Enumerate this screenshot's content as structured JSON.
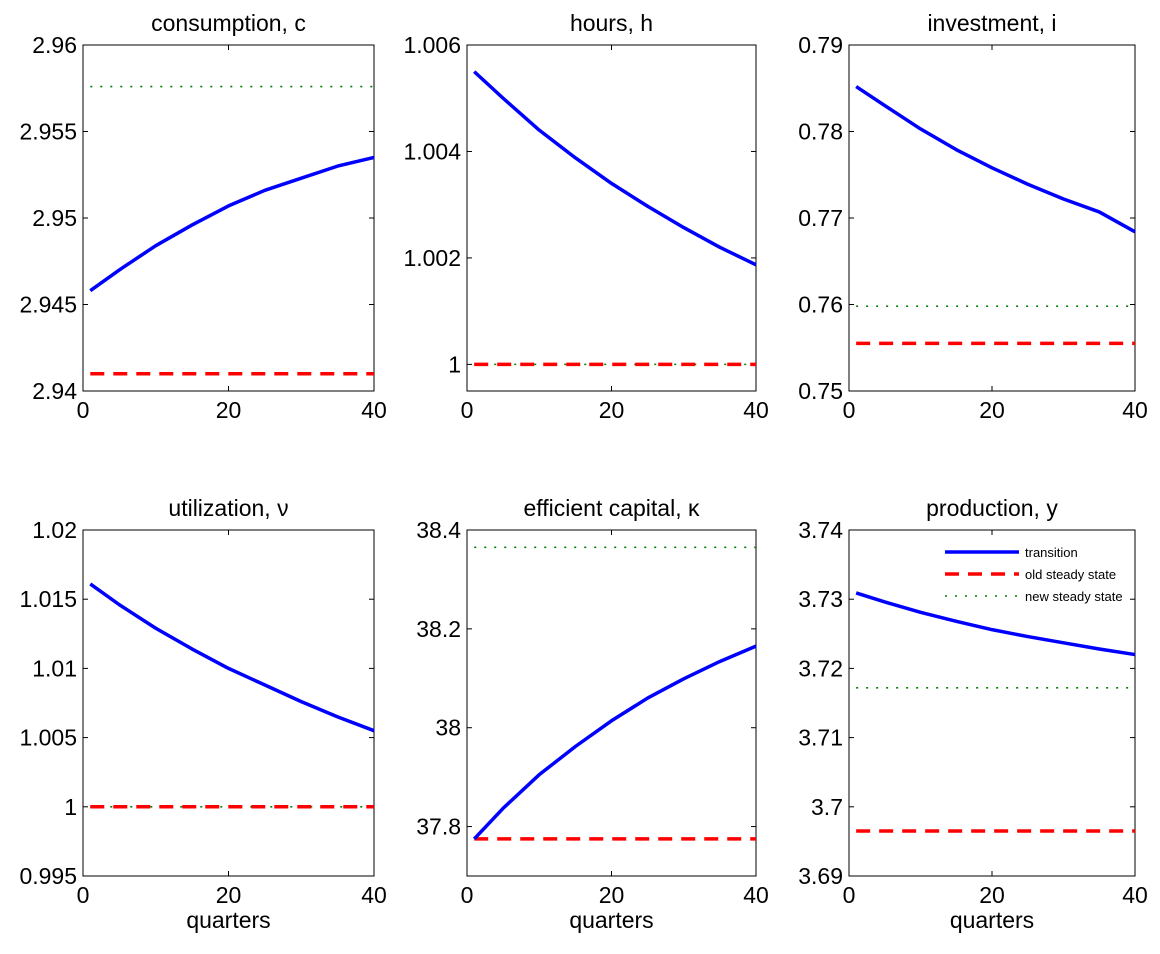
{
  "colors": {
    "transition": "#0000ff",
    "old_steady_state": "#ff0000",
    "new_steady_state": "#008000"
  },
  "legend": {
    "placement": "top-right",
    "entries": [
      "transition",
      "old steady state",
      "new steady state"
    ]
  },
  "chart_data": [
    {
      "type": "line",
      "title": "consumption, c",
      "xlabel": "",
      "xlim": [
        0,
        40
      ],
      "ylim": [
        2.94,
        2.96
      ],
      "xticks": [
        0,
        20,
        40
      ],
      "xtick_labels": [
        "0",
        "20",
        "40"
      ],
      "yticks": [
        2.94,
        2.945,
        2.95,
        2.955,
        2.96
      ],
      "ytick_labels": [
        "2.94",
        "2.945",
        "2.95",
        "2.955",
        "2.96"
      ],
      "x": [
        1,
        5,
        10,
        15,
        20,
        25,
        30,
        35,
        40
      ],
      "series": [
        {
          "name": "transition",
          "values": [
            2.9458,
            2.947,
            2.9484,
            2.9496,
            2.9507,
            2.9516,
            2.9523,
            2.953,
            2.9535
          ]
        },
        {
          "name": "old steady state",
          "values": [
            2.941,
            2.941,
            2.941,
            2.941,
            2.941,
            2.941,
            2.941,
            2.941,
            2.941
          ]
        },
        {
          "name": "new steady state",
          "values": [
            2.9576,
            2.9576,
            2.9576,
            2.9576,
            2.9576,
            2.9576,
            2.9576,
            2.9576,
            2.9576
          ]
        }
      ]
    },
    {
      "type": "line",
      "title": "hours, h",
      "xlabel": "",
      "xlim": [
        0,
        40
      ],
      "ylim": [
        0.9995,
        1.006
      ],
      "xticks": [
        0,
        20,
        40
      ],
      "xtick_labels": [
        "0",
        "20",
        "40"
      ],
      "yticks": [
        1.0,
        1.002,
        1.004,
        1.006
      ],
      "ytick_labels": [
        "1",
        "1.002",
        "1.004",
        "1.006"
      ],
      "x": [
        1,
        5,
        10,
        15,
        20,
        25,
        30,
        35,
        40
      ],
      "series": [
        {
          "name": "transition",
          "values": [
            1.0055,
            1.005,
            1.0044,
            1.00388,
            1.0034,
            1.00297,
            1.00257,
            1.0022,
            1.00187
          ]
        },
        {
          "name": "old steady state",
          "values": [
            1.0,
            1.0,
            1.0,
            1.0,
            1.0,
            1.0,
            1.0,
            1.0,
            1.0
          ]
        },
        {
          "name": "new steady state",
          "values": [
            1.0,
            1.0,
            1.0,
            1.0,
            1.0,
            1.0,
            1.0,
            1.0,
            1.0
          ]
        }
      ]
    },
    {
      "type": "line",
      "title": "investment, i",
      "xlabel": "",
      "xlim": [
        0,
        40
      ],
      "ylim": [
        0.75,
        0.79
      ],
      "xticks": [
        0,
        20,
        40
      ],
      "xtick_labels": [
        "0",
        "20",
        "40"
      ],
      "yticks": [
        0.75,
        0.76,
        0.77,
        0.78,
        0.79
      ],
      "ytick_labels": [
        "0.75",
        "0.76",
        "0.77",
        "0.78",
        "0.79"
      ],
      "x": [
        1,
        5,
        10,
        15,
        20,
        25,
        30,
        35,
        40
      ],
      "series": [
        {
          "name": "transition",
          "values": [
            0.7852,
            0.783,
            0.7803,
            0.7779,
            0.7758,
            0.7739,
            0.7722,
            0.7707,
            0.7684
          ]
        },
        {
          "name": "old steady state",
          "values": [
            0.7555,
            0.7555,
            0.7555,
            0.7555,
            0.7555,
            0.7555,
            0.7555,
            0.7555,
            0.7555
          ]
        },
        {
          "name": "new steady state",
          "values": [
            0.7598,
            0.7598,
            0.7598,
            0.7598,
            0.7598,
            0.7598,
            0.7598,
            0.7598,
            0.7598
          ]
        }
      ]
    },
    {
      "type": "line",
      "title": "utilization, ν",
      "xlabel": "quarters",
      "xlim": [
        0,
        40
      ],
      "ylim": [
        0.995,
        1.02
      ],
      "xticks": [
        0,
        20,
        40
      ],
      "xtick_labels": [
        "0",
        "20",
        "40"
      ],
      "yticks": [
        0.995,
        1.0,
        1.005,
        1.01,
        1.015,
        1.02
      ],
      "ytick_labels": [
        "0.995",
        "1",
        "1.005",
        "1.01",
        "1.015",
        "1.02"
      ],
      "x": [
        1,
        5,
        10,
        15,
        20,
        25,
        30,
        35,
        40
      ],
      "series": [
        {
          "name": "transition",
          "values": [
            1.0161,
            1.0146,
            1.0129,
            1.0114,
            1.01,
            1.0088,
            1.0076,
            1.0065,
            1.0055
          ]
        },
        {
          "name": "old steady state",
          "values": [
            1.0,
            1.0,
            1.0,
            1.0,
            1.0,
            1.0,
            1.0,
            1.0,
            1.0
          ]
        },
        {
          "name": "new steady state",
          "values": [
            1.0,
            1.0,
            1.0,
            1.0,
            1.0,
            1.0,
            1.0,
            1.0,
            1.0
          ]
        }
      ]
    },
    {
      "type": "line",
      "title": "efficient capital, κ",
      "xlabel": "quarters",
      "xlim": [
        0,
        40
      ],
      "ylim": [
        37.7,
        38.4
      ],
      "xticks": [
        0,
        20,
        40
      ],
      "xtick_labels": [
        "0",
        "20",
        "40"
      ],
      "yticks": [
        37.8,
        38.0,
        38.2,
        38.4
      ],
      "ytick_labels": [
        "37.8",
        "38",
        "38.2",
        "38.4"
      ],
      "x": [
        1,
        5,
        10,
        15,
        20,
        25,
        30,
        35,
        40
      ],
      "series": [
        {
          "name": "transition",
          "values": [
            37.775,
            37.837,
            37.905,
            37.962,
            38.014,
            38.06,
            38.099,
            38.134,
            38.165
          ]
        },
        {
          "name": "old steady state",
          "values": [
            37.775,
            37.775,
            37.775,
            37.775,
            37.775,
            37.775,
            37.775,
            37.775,
            37.775
          ]
        },
        {
          "name": "new steady state",
          "values": [
            38.365,
            38.365,
            38.365,
            38.365,
            38.365,
            38.365,
            38.365,
            38.365,
            38.365
          ]
        }
      ]
    },
    {
      "type": "line",
      "title": "production, y",
      "xlabel": "quarters",
      "xlim": [
        0,
        40
      ],
      "ylim": [
        3.69,
        3.74
      ],
      "xticks": [
        0,
        20,
        40
      ],
      "xtick_labels": [
        "0",
        "20",
        "40"
      ],
      "yticks": [
        3.69,
        3.7,
        3.71,
        3.72,
        3.73,
        3.74
      ],
      "ytick_labels": [
        "3.69",
        "3.7",
        "3.71",
        "3.72",
        "3.73",
        "3.74"
      ],
      "x": [
        1,
        5,
        10,
        15,
        20,
        25,
        30,
        35,
        40
      ],
      "series": [
        {
          "name": "transition",
          "values": [
            3.7309,
            3.7296,
            3.7281,
            3.7268,
            3.7256,
            3.7246,
            3.7237,
            3.7228,
            3.722
          ]
        },
        {
          "name": "old steady state",
          "values": [
            3.6965,
            3.6965,
            3.6965,
            3.6965,
            3.6965,
            3.6965,
            3.6965,
            3.6965,
            3.6965
          ]
        },
        {
          "name": "new steady state",
          "values": [
            3.7172,
            3.7172,
            3.7172,
            3.7172,
            3.7172,
            3.7172,
            3.7172,
            3.7172,
            3.7172
          ]
        }
      ]
    }
  ]
}
